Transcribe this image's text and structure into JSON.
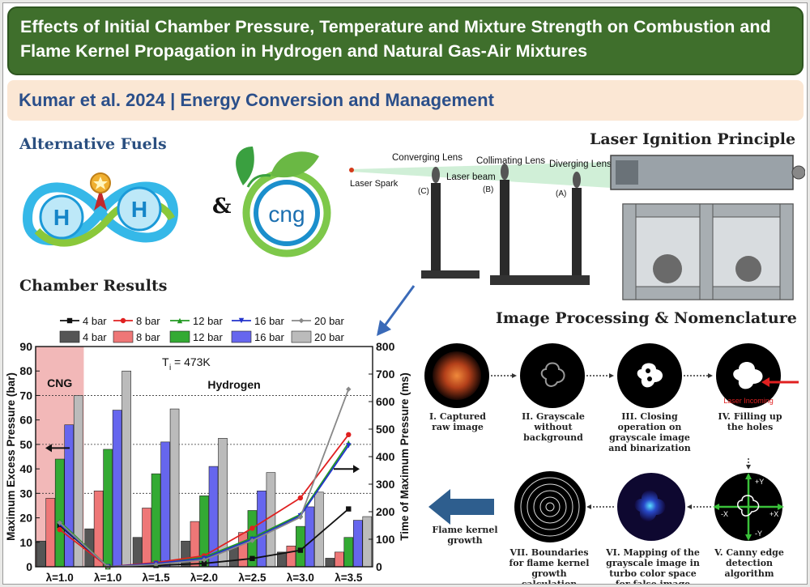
{
  "title": "Effects of Initial Chamber Pressure, Temperature and Mixture Strength on Combustion and Flame Kernel Propagation in Hydrogen and Natural Gas-Air Mixtures",
  "citation": "Kumar et al. 2024 | Energy Conversion and Management",
  "sections": {
    "alternative_fuels": "Alternative Fuels",
    "laser_ignition": "Laser Ignition Principle",
    "chamber_results": "Chamber Results",
    "image_processing": "Image Processing & Nomenclature"
  },
  "fuels": {
    "h_label": "H",
    "amp": "&",
    "cng_label": "cng"
  },
  "laser": {
    "converging": "Converging Lens",
    "collimating": "Collimating Lens",
    "diverging": "Diverging Lens",
    "spark": "Laser Spark",
    "beam": "Laser beam",
    "c": "(C)",
    "b": "(B)",
    "a": "(A)"
  },
  "image_steps": [
    {
      "id": "I",
      "caption": "I. Captured raw image"
    },
    {
      "id": "II",
      "caption": "II. Grayscale without background"
    },
    {
      "id": "III",
      "caption": "III. Closing operation on grayscale image and binarization"
    },
    {
      "id": "IV",
      "caption": "IV. Filling up the holes"
    },
    {
      "id": "V",
      "caption": "V. Canny edge detection algorithm"
    },
    {
      "id": "VI",
      "caption": "VI. Mapping of the grayscale image in turbo color space for false image"
    },
    {
      "id": "VII",
      "caption": "VII. Boundaries for flame kernel growth calculation"
    }
  ],
  "laser_incoming": "Laser Incoming",
  "axis_signs": {
    "py": "+Y",
    "ny": "-Y",
    "px": "+X",
    "nx": "-X"
  },
  "flame_kernel_growth": "Flame kernel growth",
  "chart_data": {
    "type": "bar",
    "annotation": "T",
    "annotation_sub": "i",
    "annotation_value": "= 473K",
    "region_labels": {
      "cng": "CNG",
      "hydrogen": "Hydrogen"
    },
    "categories": [
      "λ=1.0",
      "λ=1.0",
      "λ=1.5",
      "λ=2.0",
      "λ=2.5",
      "λ=3.0",
      "λ=3.5"
    ],
    "ylabel_left": "Maximum Excess Pressure (bar)",
    "ylabel_right": "Time of Maximum Pressure (ms)",
    "ylim_left": [
      0,
      90
    ],
    "ylim_right": [
      0,
      800
    ],
    "yticks_left": [
      0,
      10,
      20,
      30,
      40,
      50,
      60,
      70,
      80,
      90
    ],
    "yticks_right": [
      0,
      100,
      200,
      300,
      400,
      500,
      600,
      700,
      800
    ],
    "gridlines_left": [
      30,
      50,
      70
    ],
    "bar_series": [
      {
        "name": "4 bar",
        "color": "#555555",
        "values": [
          10.5,
          15.5,
          12,
          10.5,
          8,
          6,
          3.5
        ]
      },
      {
        "name": "8 bar",
        "color": "#ee7777",
        "values": [
          28,
          31,
          24,
          18.5,
          14,
          8.5,
          6
        ]
      },
      {
        "name": "12 bar",
        "color": "#33aa33",
        "values": [
          44,
          48,
          38,
          29,
          23,
          16.5,
          12
        ]
      },
      {
        "name": "16 bar",
        "color": "#6666ee",
        "values": [
          58,
          64,
          51,
          41,
          31,
          24.5,
          19
        ]
      },
      {
        "name": "20 bar",
        "color": "#bbbbbb",
        "values": [
          70,
          80,
          64.5,
          52.5,
          38.5,
          30.5,
          20.5
        ]
      }
    ],
    "line_series": [
      {
        "name": "4 bar",
        "color": "#111111",
        "marker": "square",
        "values": [
          150,
          0,
          5,
          12,
          30,
          60,
          210
        ]
      },
      {
        "name": "8 bar",
        "color": "#e02020",
        "marker": "circle",
        "values": [
          135,
          0,
          15,
          40,
          140,
          250,
          480
        ]
      },
      {
        "name": "12 bar",
        "color": "#229922",
        "marker": "triangle",
        "values": [
          165,
          0,
          10,
          35,
          105,
          190,
          450
        ]
      },
      {
        "name": "16 bar",
        "color": "#2233cc",
        "marker": "tri-down",
        "values": [
          155,
          0,
          12,
          30,
          100,
          185,
          440
        ]
      },
      {
        "name": "20 bar",
        "color": "#888888",
        "marker": "diamond",
        "values": [
          160,
          0,
          8,
          25,
          95,
          180,
          645
        ]
      }
    ]
  }
}
